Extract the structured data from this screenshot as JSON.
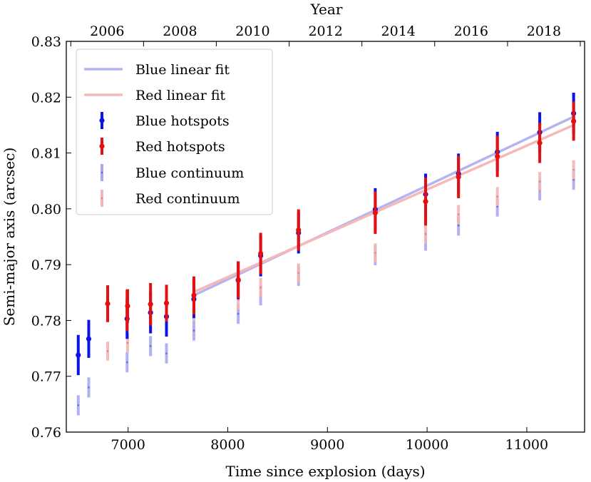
{
  "chart_data": {
    "type": "scatter",
    "title": "",
    "xlabel": "Time since explosion (days)",
    "ylabel": "Semi-major axis (arcsec)",
    "top_xlabel": "Year",
    "xlim": [
      6380,
      11580
    ],
    "ylim": [
      0.76,
      0.83
    ],
    "x_ticks": [
      7000,
      8000,
      9000,
      10000,
      11000
    ],
    "x_tick_labels": [
      "7000",
      "8000",
      "9000",
      "10000",
      "11000"
    ],
    "y_ticks": [
      0.76,
      0.77,
      0.78,
      0.79,
      0.8,
      0.81,
      0.82,
      0.83
    ],
    "y_tick_labels": [
      "0.76",
      "0.77",
      "0.78",
      "0.79",
      "0.80",
      "0.81",
      "0.82",
      "0.83"
    ],
    "top_ticks_days": [
      6425,
      7155,
      7885,
      8616,
      9346,
      10076,
      10807,
      11537
    ],
    "top_tick_labels": [
      "2006",
      "2008",
      "2010",
      "2012",
      "2014",
      "2016",
      "2018"
    ],
    "top_tick_label_days": [
      6790,
      7520,
      8250,
      8981,
      9711,
      10441,
      11172
    ],
    "legend_position": "upper-left",
    "colors": {
      "blue": "#0a14e6",
      "red": "#e60f0f",
      "blue_fit": "#b4b4f0",
      "red_fit": "#f7b8b8",
      "blue_cont": "#a8a8ef",
      "red_cont": "#f6b4b4"
    },
    "series": [
      {
        "name": "Blue linear fit",
        "kind": "line",
        "color_key": "blue_fit",
        "x": [
          7660,
          11470
        ],
        "y": [
          0.7845,
          0.8165
        ]
      },
      {
        "name": "Red linear fit",
        "kind": "line",
        "color_key": "red_fit",
        "x": [
          7660,
          11470
        ],
        "y": [
          0.7851,
          0.815
        ]
      },
      {
        "name": "Blue hotspots",
        "kind": "errorbar",
        "color_key": "blue",
        "x": [
          6500,
          6605,
          6990,
          7225,
          7385,
          7660,
          8105,
          8330,
          8710,
          9480,
          9985,
          10315,
          10705,
          11130,
          11470
        ],
        "y": [
          0.7738,
          0.7767,
          0.7803,
          0.7814,
          0.7807,
          0.7838,
          0.7872,
          0.7916,
          0.7957,
          0.7999,
          0.8026,
          0.8063,
          0.8102,
          0.8137,
          0.8171
        ],
        "err": [
          0.0036,
          0.0034,
          0.0036,
          0.0037,
          0.0036,
          0.0034,
          0.0034,
          0.0037,
          0.0037,
          0.0038,
          0.0037,
          0.0036,
          0.0036,
          0.0036,
          0.0037
        ]
      },
      {
        "name": "Red hotspots",
        "kind": "errorbar",
        "color_key": "red",
        "x": [
          6795,
          6995,
          7225,
          7385,
          7660,
          8105,
          8330,
          8710,
          9480,
          9985,
          10315,
          10705,
          11130,
          11470
        ],
        "y": [
          0.783,
          0.7826,
          0.7829,
          0.7831,
          0.7845,
          0.7873,
          0.792,
          0.7962,
          0.7993,
          0.8013,
          0.8057,
          0.8094,
          0.8118,
          0.8157
        ],
        "err": [
          0.0033,
          0.003,
          0.0038,
          0.0033,
          0.0034,
          0.0033,
          0.0037,
          0.0037,
          0.0038,
          0.0043,
          0.0038,
          0.0037,
          0.0036,
          0.0035
        ],
        "extra_err_x": [
          6990
        ],
        "extra_err_y": [
          0.7818
        ],
        "extra_err": [
          0.0037
        ]
      },
      {
        "name": "Blue continuum",
        "kind": "errorbar",
        "color_key": "blue_cont",
        "x": [
          6500,
          6605,
          6990,
          7225,
          7385,
          7660,
          8105,
          8330,
          8710,
          9480,
          9985,
          10315,
          10705,
          11130,
          11470
        ],
        "y": [
          0.7648,
          0.768,
          0.7725,
          0.7754,
          0.7741,
          0.7782,
          0.7812,
          0.7845,
          0.788,
          0.7917,
          0.7943,
          0.797,
          0.8004,
          0.8033,
          0.8052
        ],
        "err": [
          0.0018,
          0.0018,
          0.0018,
          0.0018,
          0.0018,
          0.0018,
          0.0018,
          0.0018,
          0.0018,
          0.0018,
          0.0018,
          0.0018,
          0.0018,
          0.0018,
          0.0018
        ]
      },
      {
        "name": "Red continuum",
        "kind": "errorbar",
        "color_key": "red_cont",
        "x": [
          6795,
          6995,
          7225,
          7385,
          7660,
          8105,
          8330,
          8710,
          9480,
          9985,
          10315,
          10705,
          11130,
          11470
        ],
        "y": [
          0.7745,
          0.776,
          0.7793,
          0.7799,
          0.7816,
          0.7837,
          0.7859,
          0.7885,
          0.7921,
          0.7955,
          0.799,
          0.8022,
          0.8049,
          0.807
        ],
        "err": [
          0.0017,
          0.0017,
          0.0017,
          0.0017,
          0.0017,
          0.0017,
          0.0017,
          0.0017,
          0.0017,
          0.0017,
          0.0017,
          0.0017,
          0.0017,
          0.0017
        ]
      }
    ]
  }
}
